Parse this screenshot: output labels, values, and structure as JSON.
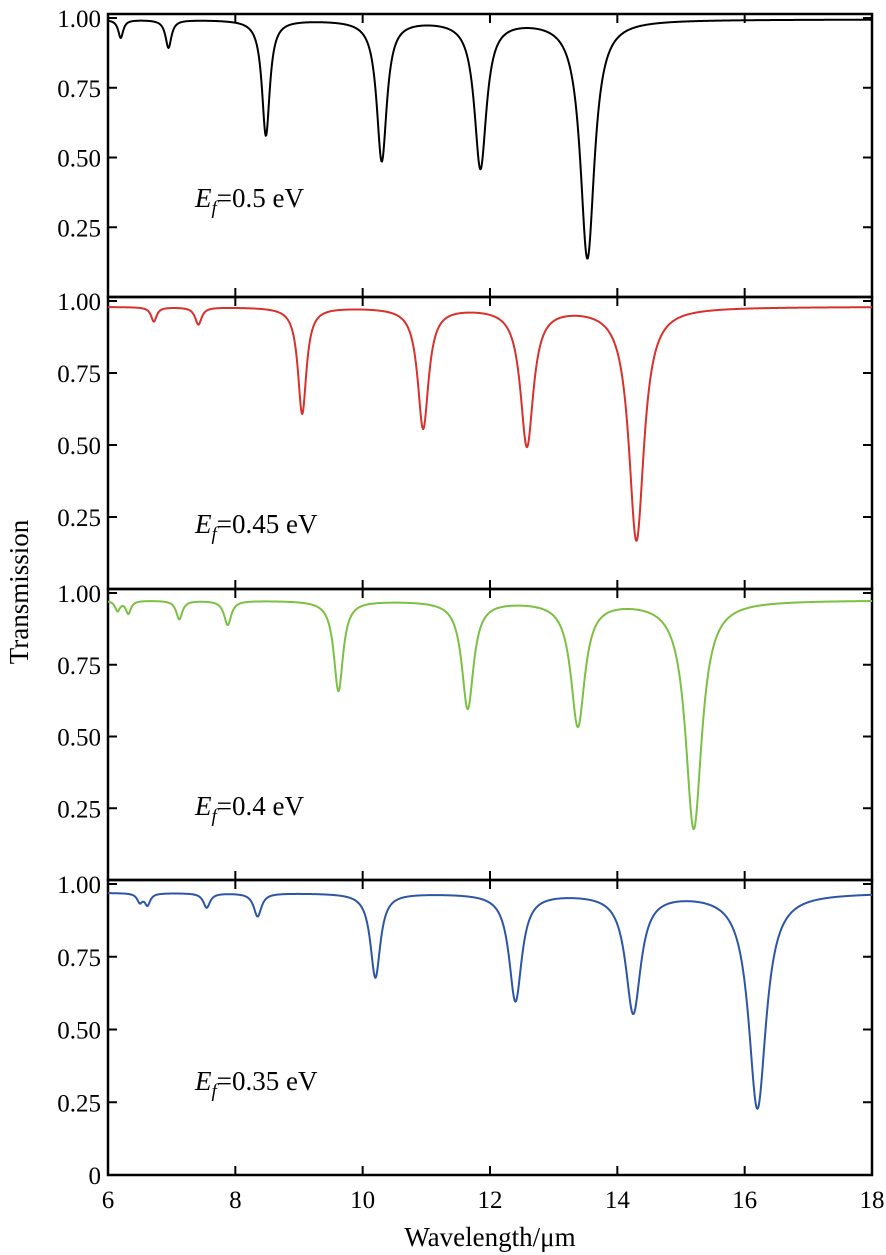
{
  "chart_data": [
    {
      "type": "line",
      "ylabel": "Transmission",
      "xlabel": "Wavelength/μm",
      "xlim": [
        6,
        18
      ],
      "ylim": [
        0,
        1.0
      ],
      "x_ticks": [
        "6",
        "8",
        "10",
        "12",
        "14",
        "16",
        "18"
      ],
      "y_ticks": [
        "1.00",
        "0.75",
        "0.50",
        "0.25"
      ],
      "panels": [
        {
          "label_sym": "E",
          "label_sub": "f",
          "label_value": "=0.5 eV",
          "color": "#000000",
          "baseline": 0.995,
          "dips": [
            {
              "x": 6.2,
              "min": 0.93
            },
            {
              "x": 6.95,
              "min": 0.895
            },
            {
              "x": 8.48,
              "min": 0.58
            },
            {
              "x": 10.3,
              "min": 0.49
            },
            {
              "x": 11.85,
              "min": 0.465
            },
            {
              "x": 13.53,
              "min": 0.14
            }
          ]
        },
        {
          "label_sym": "E",
          "label_sub": "f",
          "label_value": "=0.45 eV",
          "color": "#d9302b",
          "baseline": 0.98,
          "dips": [
            {
              "x": 6.72,
              "min": 0.93
            },
            {
              "x": 7.42,
              "min": 0.92
            },
            {
              "x": 9.05,
              "min": 0.61
            },
            {
              "x": 10.95,
              "min": 0.56
            },
            {
              "x": 12.58,
              "min": 0.5
            },
            {
              "x": 14.3,
              "min": 0.17
            }
          ]
        },
        {
          "label_sym": "E",
          "label_sub": "f",
          "label_value": "=0.4 eV",
          "color": "#7bc043",
          "baseline": 0.975,
          "dips": [
            {
              "x": 6.15,
              "min": 0.94
            },
            {
              "x": 6.32,
              "min": 0.93
            },
            {
              "x": 7.12,
              "min": 0.91
            },
            {
              "x": 7.88,
              "min": 0.89
            },
            {
              "x": 9.62,
              "min": 0.66
            },
            {
              "x": 11.65,
              "min": 0.6
            },
            {
              "x": 13.38,
              "min": 0.54
            },
            {
              "x": 15.2,
              "min": 0.18
            }
          ]
        },
        {
          "label_sym": "E",
          "label_sub": "f",
          "label_value": "=0.35 eV",
          "color": "#2d55a6",
          "baseline": 0.97,
          "dips": [
            {
              "x": 6.5,
              "min": 0.94
            },
            {
              "x": 6.62,
              "min": 0.93
            },
            {
              "x": 7.55,
              "min": 0.92
            },
            {
              "x": 8.35,
              "min": 0.89
            },
            {
              "x": 10.2,
              "min": 0.68
            },
            {
              "x": 12.4,
              "min": 0.6
            },
            {
              "x": 14.25,
              "min": 0.56
            },
            {
              "x": 16.2,
              "min": 0.23
            }
          ]
        }
      ]
    }
  ]
}
